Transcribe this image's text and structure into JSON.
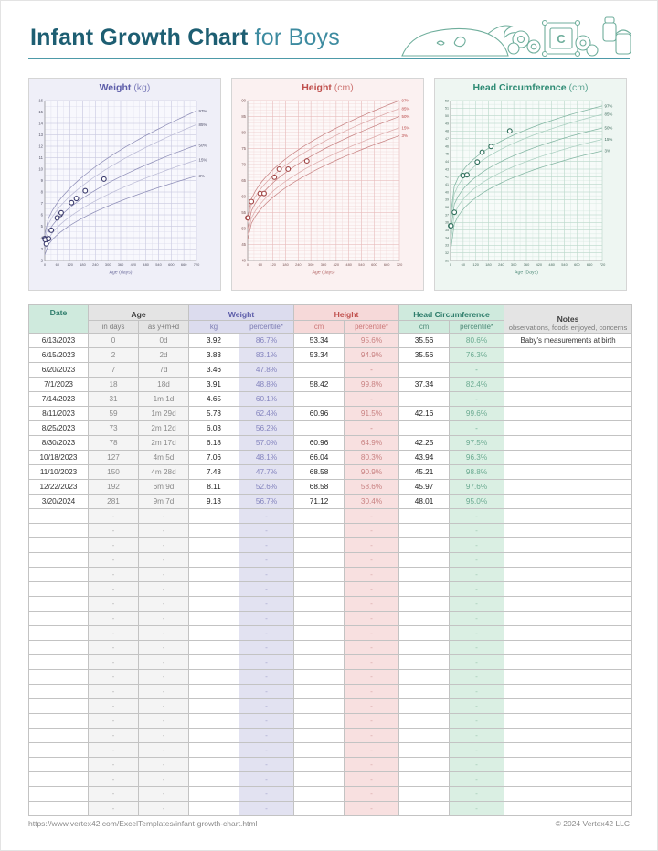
{
  "page": {
    "title_main": "Infant Growth Chart",
    "title_sub": " for Boys",
    "accent_color": "#1d5e72",
    "rule_color": "#4d9aa8"
  },
  "chart_data": [
    {
      "id": "weight",
      "type": "line+scatter",
      "title": "Weight",
      "unit": "(kg)",
      "xlabel": "Age (days)",
      "xlim": [
        0,
        720
      ],
      "x_tick_step": 60,
      "x_minor_step": 30,
      "ylim": [
        2,
        16
      ],
      "y_tick_step": 1,
      "y_minor_step": 0.5,
      "curve_exp": 0.55,
      "percentile_curves": [
        {
          "label": "97%",
          "start": 4.3,
          "end": 15.1
        },
        {
          "label": "85%",
          "start": 3.9,
          "end": 13.9
        },
        {
          "label": "50%",
          "start": 3.4,
          "end": 12.1
        },
        {
          "label": "15%",
          "start": 2.9,
          "end": 10.8
        },
        {
          "label": "3%",
          "start": 2.5,
          "end": 9.4
        }
      ],
      "points": [
        [
          0,
          3.92
        ],
        [
          2,
          3.83
        ],
        [
          7,
          3.46
        ],
        [
          18,
          3.91
        ],
        [
          31,
          4.65
        ],
        [
          59,
          5.73
        ],
        [
          73,
          6.03
        ],
        [
          78,
          6.18
        ],
        [
          127,
          7.06
        ],
        [
          150,
          7.43
        ],
        [
          192,
          8.11
        ],
        [
          281,
          9.13
        ]
      ],
      "theme": {
        "panel_bg": "#efeff8",
        "plot_bg": "#f8f8fd",
        "grid": "#dcdcec",
        "grid_major": "#c9c9e0",
        "curve": "#8f8fb8",
        "curve_light": "#bbbbd6",
        "title": "#5d5da9",
        "tick_text": "#555566",
        "pct_text": "#50506a",
        "point": "#3c3c6e",
        "axis_title": "#6a6a9a"
      }
    },
    {
      "id": "height",
      "type": "line+scatter",
      "title": "Height",
      "unit": "(cm)",
      "xlabel": "Age (days)",
      "xlim": [
        0,
        720
      ],
      "x_tick_step": 60,
      "x_minor_step": 30,
      "ylim": [
        40,
        90
      ],
      "y_tick_step": 5,
      "y_minor_step": 1,
      "curve_exp": 0.5,
      "percentile_curves": [
        {
          "label": "97%",
          "start": 53.5,
          "end": 90
        },
        {
          "label": "85%",
          "start": 52,
          "end": 87.5
        },
        {
          "label": "50%",
          "start": 50,
          "end": 85
        },
        {
          "label": "15%",
          "start": 48,
          "end": 81.5
        },
        {
          "label": "3%",
          "start": 46.5,
          "end": 79
        }
      ],
      "points": [
        [
          0,
          53.34
        ],
        [
          2,
          53.34
        ],
        [
          18,
          58.42
        ],
        [
          59,
          60.96
        ],
        [
          78,
          60.96
        ],
        [
          127,
          66.04
        ],
        [
          150,
          68.58
        ],
        [
          192,
          68.58
        ],
        [
          281,
          71.12
        ]
      ],
      "theme": {
        "panel_bg": "#fbf1f1",
        "plot_bg": "#fdf8f8",
        "grid": "#f2d9d9",
        "grid_major": "#e7bcbc",
        "curve": "#c88585",
        "curve_light": "#ddabab",
        "title": "#c0504d",
        "tick_text": "#7a5555",
        "pct_text": "#b84545",
        "point": "#a04545",
        "axis_title": "#b06060"
      }
    },
    {
      "id": "head",
      "type": "line+scatter",
      "title": "Head Circumference",
      "unit": "(cm)",
      "xlabel": "Age (Days)",
      "xlim": [
        0,
        720
      ],
      "x_tick_step": 60,
      "x_minor_step": 30,
      "ylim": [
        31,
        52
      ],
      "y_tick_step": 1,
      "y_minor_step": 0.5,
      "curve_exp": 0.35,
      "percentile_curves": [
        {
          "label": "97%",
          "start": 36.8,
          "end": 51.3
        },
        {
          "label": "85%",
          "start": 35.8,
          "end": 50.2
        },
        {
          "label": "50%",
          "start": 34.6,
          "end": 48.4
        },
        {
          "label": "15%",
          "start": 33.4,
          "end": 46.9
        },
        {
          "label": "3%",
          "start": 32.2,
          "end": 45.4
        }
      ],
      "points": [
        [
          0,
          35.56
        ],
        [
          2,
          35.56
        ],
        [
          18,
          37.34
        ],
        [
          59,
          42.16
        ],
        [
          78,
          42.25
        ],
        [
          127,
          43.94
        ],
        [
          150,
          45.21
        ],
        [
          192,
          45.97
        ],
        [
          281,
          48.01
        ]
      ],
      "theme": {
        "panel_bg": "#eef6f2",
        "plot_bg": "#f7fbf9",
        "grid": "#d7e9e0",
        "grid_major": "#bcd9cc",
        "curve": "#83b6a3",
        "curve_light": "#a9cfc0",
        "title": "#2e8b74",
        "tick_text": "#4a6b5f",
        "pct_text": "#3d6b5c",
        "point": "#2e6e5a",
        "axis_title": "#4e8a78"
      }
    }
  ],
  "table": {
    "header": {
      "date": "Date",
      "age": "Age",
      "age_sub1": "in days",
      "age_sub2": "as y+m+d",
      "weight": "Weight",
      "weight_sub1": "kg",
      "weight_sub2": "percentile*",
      "height": "Height",
      "height_sub1": "cm",
      "height_sub2": "percentile*",
      "head": "Head Circumference",
      "head_sub1": "cm",
      "head_sub2": "percentile*",
      "notes": "Notes",
      "notes_sub": "observations, foods enjoyed, concerns"
    },
    "rows": [
      {
        "date": "6/13/2023",
        "days": "0",
        "ymd": "0d",
        "kg": "3.92",
        "kg_pct": "86.7%",
        "cm": "53.34",
        "cm_pct": "95.6%",
        "hc": "35.56",
        "hc_pct": "80.6%",
        "notes": "Baby's measurements at birth"
      },
      {
        "date": "6/15/2023",
        "days": "2",
        "ymd": "2d",
        "kg": "3.83",
        "kg_pct": "83.1%",
        "cm": "53.34",
        "cm_pct": "94.9%",
        "hc": "35.56",
        "hc_pct": "76.3%",
        "notes": ""
      },
      {
        "date": "6/20/2023",
        "days": "7",
        "ymd": "7d",
        "kg": "3.46",
        "kg_pct": "47.8%",
        "cm": "",
        "cm_pct": "-",
        "hc": "",
        "hc_pct": "-",
        "notes": ""
      },
      {
        "date": "7/1/2023",
        "days": "18",
        "ymd": "18d",
        "kg": "3.91",
        "kg_pct": "48.8%",
        "cm": "58.42",
        "cm_pct": "99.8%",
        "hc": "37.34",
        "hc_pct": "82.4%",
        "notes": ""
      },
      {
        "date": "7/14/2023",
        "days": "31",
        "ymd": "1m 1d",
        "kg": "4.65",
        "kg_pct": "60.1%",
        "cm": "",
        "cm_pct": "-",
        "hc": "",
        "hc_pct": "-",
        "notes": ""
      },
      {
        "date": "8/11/2023",
        "days": "59",
        "ymd": "1m 29d",
        "kg": "5.73",
        "kg_pct": "62.4%",
        "cm": "60.96",
        "cm_pct": "91.5%",
        "hc": "42.16",
        "hc_pct": "99.6%",
        "notes": ""
      },
      {
        "date": "8/25/2023",
        "days": "73",
        "ymd": "2m 12d",
        "kg": "6.03",
        "kg_pct": "56.2%",
        "cm": "",
        "cm_pct": "-",
        "hc": "",
        "hc_pct": "-",
        "notes": ""
      },
      {
        "date": "8/30/2023",
        "days": "78",
        "ymd": "2m 17d",
        "kg": "6.18",
        "kg_pct": "57.0%",
        "cm": "60.96",
        "cm_pct": "64.9%",
        "hc": "42.25",
        "hc_pct": "97.5%",
        "notes": ""
      },
      {
        "date": "10/18/2023",
        "days": "127",
        "ymd": "4m 5d",
        "kg": "7.06",
        "kg_pct": "48.1%",
        "cm": "66.04",
        "cm_pct": "80.3%",
        "hc": "43.94",
        "hc_pct": "96.3%",
        "notes": ""
      },
      {
        "date": "11/10/2023",
        "days": "150",
        "ymd": "4m 28d",
        "kg": "7.43",
        "kg_pct": "47.7%",
        "cm": "68.58",
        "cm_pct": "90.9%",
        "hc": "45.21",
        "hc_pct": "98.8%",
        "notes": ""
      },
      {
        "date": "12/22/2023",
        "days": "192",
        "ymd": "6m 9d",
        "kg": "8.11",
        "kg_pct": "52.6%",
        "cm": "68.58",
        "cm_pct": "58.6%",
        "hc": "45.97",
        "hc_pct": "97.6%",
        "notes": ""
      },
      {
        "date": "3/20/2024",
        "days": "281",
        "ymd": "9m 7d",
        "kg": "9.13",
        "kg_pct": "56.7%",
        "cm": "71.12",
        "cm_pct": "30.4%",
        "hc": "48.01",
        "hc_pct": "95.0%",
        "notes": ""
      }
    ],
    "empty_rows": 21,
    "empty_cell": "-"
  },
  "footer": {
    "url": "https://www.vertex42.com/ExcelTemplates/infant-growth-chart.html",
    "copyright": "© 2024 Vertex42 LLC"
  }
}
